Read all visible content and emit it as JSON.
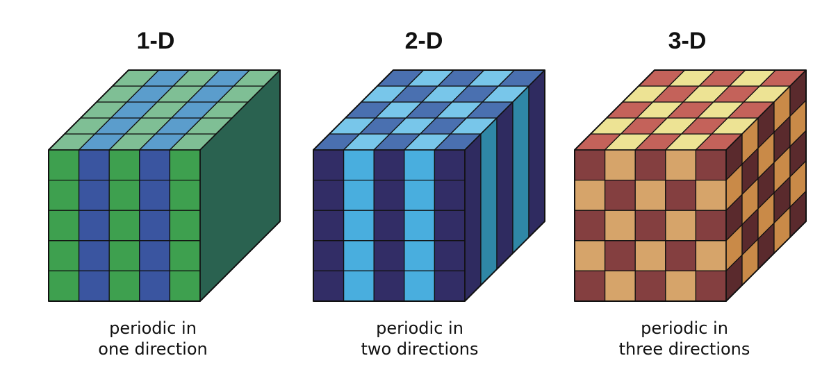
{
  "crystals": [
    {
      "title": "1-D",
      "caption_line1": "periodic in",
      "caption_line2": "one direction",
      "periodic_directions": 1,
      "colors": {
        "front_a": "#3ea04f",
        "front_b": "#3a55a0",
        "top_a": "#7fbf95",
        "top_b": "#5b9dcc",
        "side": "#2a6250"
      }
    },
    {
      "title": "2-D",
      "caption_line1": "periodic in",
      "caption_line2": "two directions",
      "periodic_directions": 2,
      "colors": {
        "front_a": "#322d66",
        "front_b": "#49aede",
        "top_a": "#4a70b0",
        "top_b": "#78c6ea",
        "side_a": "#2f2b60",
        "side_b": "#2f87a6"
      }
    },
    {
      "title": "3-D",
      "caption_line1": "periodic in",
      "caption_line2": "three directions",
      "periodic_directions": 3,
      "colors": {
        "front_a": "#843f40",
        "front_b": "#d6a46a",
        "top_a": "#c4625a",
        "top_b": "#ede394",
        "side_a": "#5a2a2d",
        "side_b": "#c98a48"
      }
    }
  ]
}
